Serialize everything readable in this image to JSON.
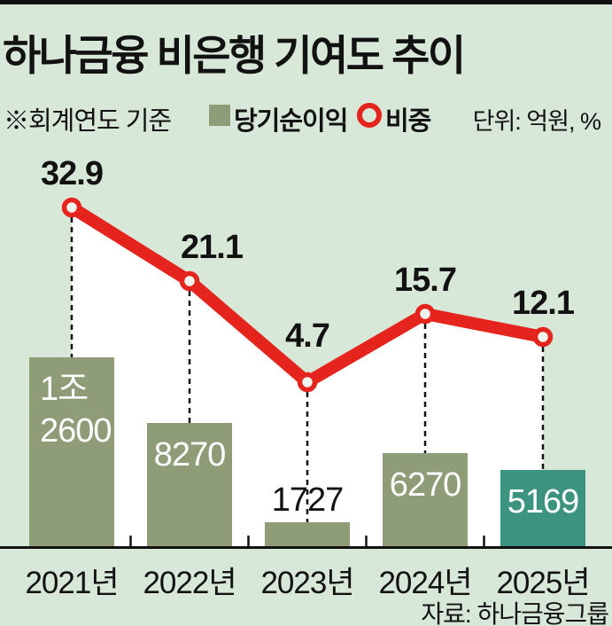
{
  "header": {
    "title": "하나금융 비은행 기여도 추이"
  },
  "legend": {
    "note": "※회계연도 기준",
    "bar_series_label": "당기순이익",
    "line_series_label": "비중",
    "unit_label": "단위: 억원, %"
  },
  "footer": {
    "source": "자료: 하나금융그룹"
  },
  "colors": {
    "background": "#d8e8d8",
    "bar": "#8e9d77",
    "bar_highlight": "#3c9480",
    "line": "#e5241e",
    "under_line_fill": "#ffffff",
    "marker_fill": "#ecf4ec",
    "axis": "#121212"
  },
  "chart_data": {
    "type": "bar+line combo",
    "title": "하나금융 비은행 기여도 추이",
    "note": "※회계연도 기준",
    "unit": "억원, %",
    "source": "자료: 하나금융그룹",
    "categories": [
      "2021년",
      "2022년",
      "2023년",
      "2024년",
      "2025년"
    ],
    "series": [
      {
        "name": "당기순이익",
        "type": "bar",
        "values": [
          12600,
          8270,
          1727,
          6270,
          5169
        ],
        "value_labels": [
          [
            "1조",
            "2600"
          ],
          [
            "8270"
          ],
          [
            "1727"
          ],
          [
            "6270"
          ],
          [
            "5169"
          ]
        ],
        "highlight_index": 4
      },
      {
        "name": "비중",
        "type": "line",
        "values": [
          32.9,
          21.1,
          4.7,
          15.7,
          12.1
        ],
        "value_labels": [
          "32.9",
          "21.1",
          "4.7",
          "15.7",
          "12.1"
        ],
        "ylim": [
          0,
          35
        ]
      }
    ],
    "legend_position": "top",
    "grid": false
  }
}
